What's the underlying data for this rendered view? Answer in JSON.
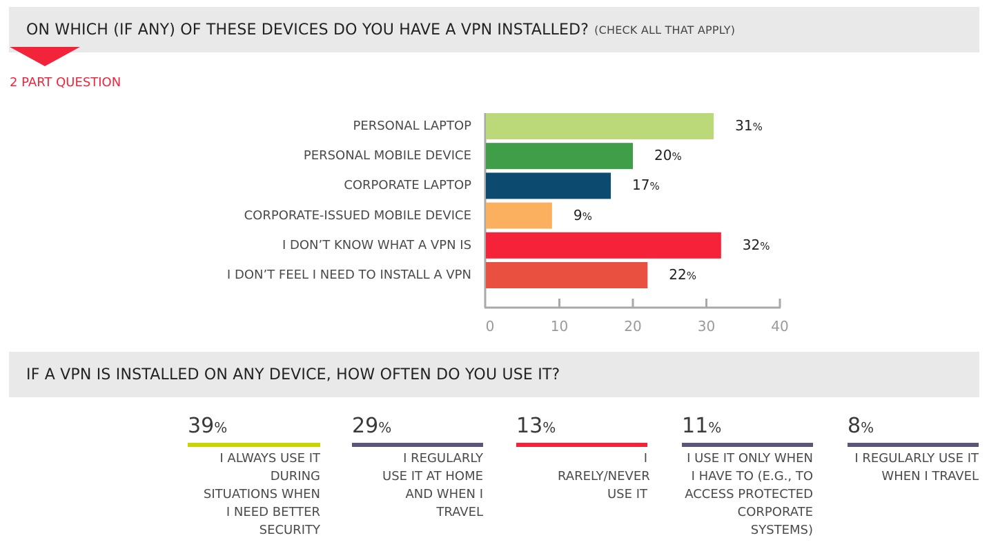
{
  "header1": {
    "title": "ON WHICH (IF ANY) OF THESE DEVICES DO YOU HAVE A VPN INSTALLED?",
    "subtitle": "(CHECK ALL THAT APPLY)"
  },
  "note": "2 PART QUESTION",
  "chart_data": {
    "type": "bar",
    "orientation": "horizontal",
    "categories": [
      "PERSONAL LAPTOP",
      "PERSONAL MOBILE DEVICE",
      "CORPORATE LAPTOP",
      "CORPORATE-ISSUED MOBILE DEVICE",
      "I DON’T KNOW WHAT A VPN IS",
      "I DON’T FEEL I NEED TO INSTALL A VPN"
    ],
    "values": [
      31,
      20,
      17,
      9,
      32,
      22
    ],
    "value_labels": [
      "31",
      "20",
      "17",
      "9",
      "32",
      "22"
    ],
    "unit": "%",
    "colors": [
      "#bcd97a",
      "#3f9e47",
      "#0d4a6f",
      "#fbb060",
      "#f4233a",
      "#ea5040"
    ],
    "xlim": [
      0,
      40
    ],
    "xticks": [
      "0",
      "10",
      "20",
      "30",
      "40"
    ],
    "grid": false
  },
  "header2": {
    "title": "IF A VPN IS INSTALLED ON ANY DEVICE, HOW OFTEN DO YOU USE IT?"
  },
  "usage": [
    {
      "value": "39",
      "unit": "%",
      "label": "I ALWAYS USE IT DURING SITUATIONS WHEN I NEED BETTER SECURITY",
      "color": "#c9d400"
    },
    {
      "value": "29",
      "unit": "%",
      "label": "I REGULARLY USE IT AT HOME AND WHEN I TRAVEL",
      "color": "#5b5677"
    },
    {
      "value": "13",
      "unit": "%",
      "label": "I RARELY/NEVER USE IT",
      "color": "#f4233a"
    },
    {
      "value": "11",
      "unit": "%",
      "label": "I USE IT ONLY WHEN I HAVE TO (E.G., TO ACCESS PROTECTED CORPORATE SYSTEMS)",
      "color": "#5b5677"
    },
    {
      "value": "8",
      "unit": "%",
      "label": "I REGULARLY USE IT WHEN I TRAVEL",
      "color": "#5b5677"
    }
  ]
}
